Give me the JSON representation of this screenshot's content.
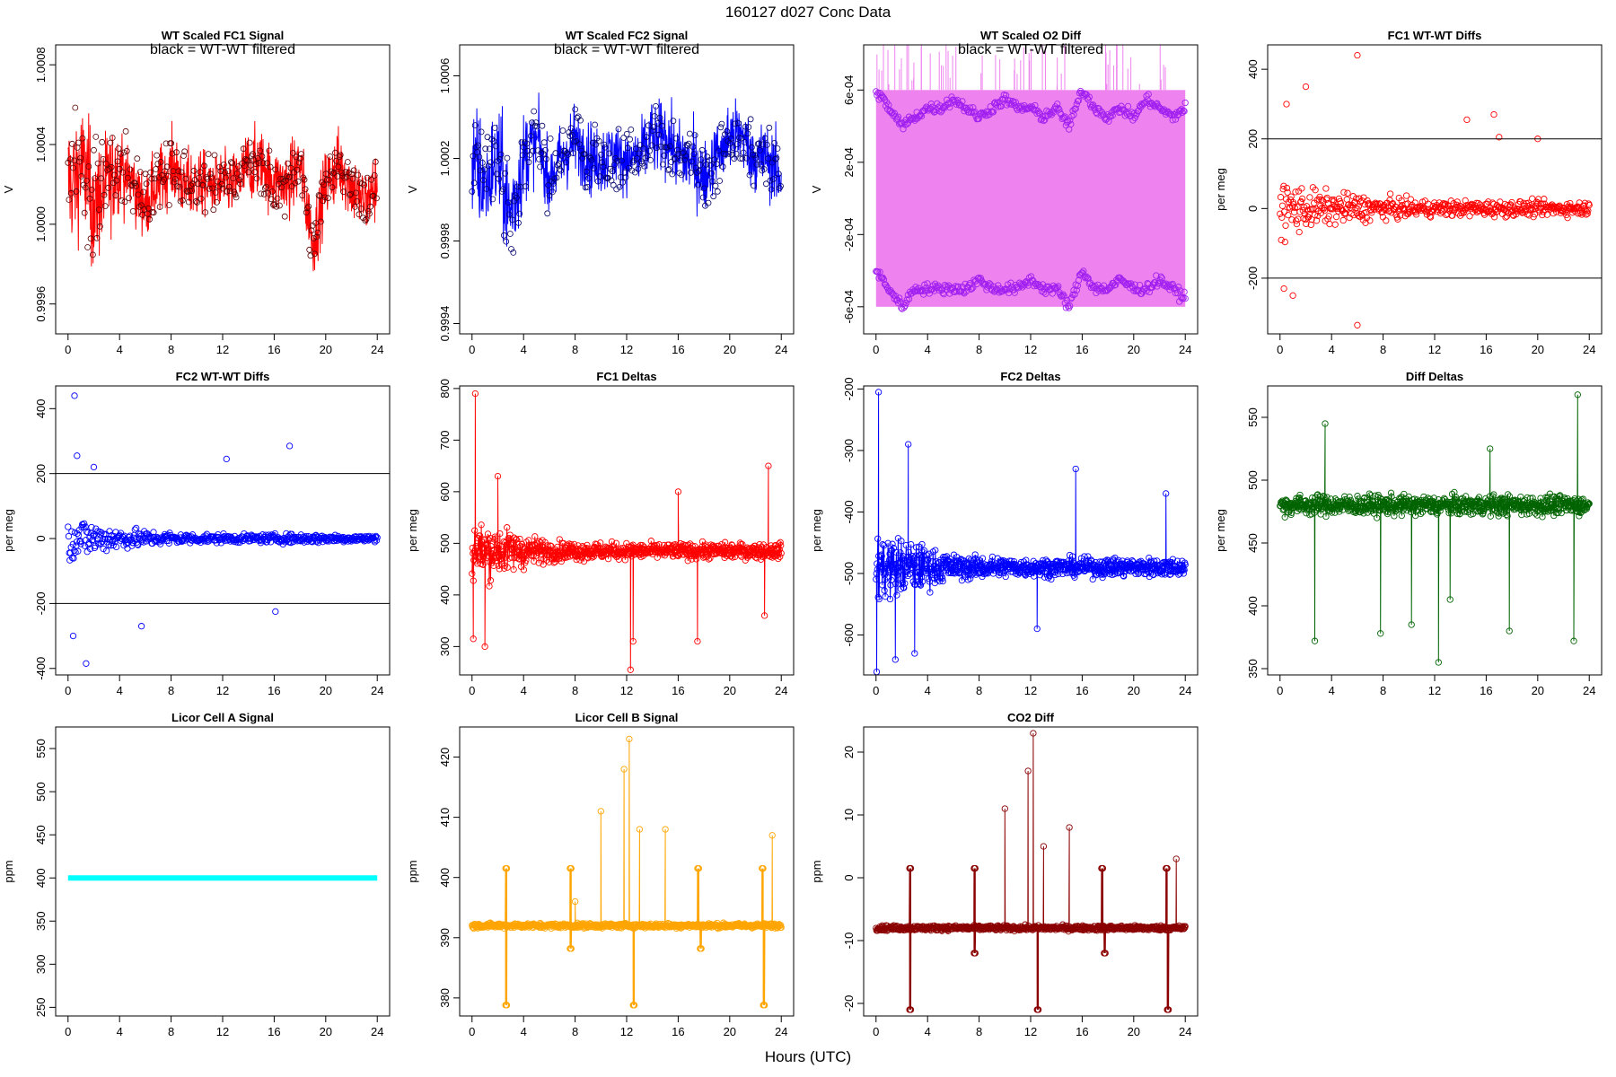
{
  "figure": {
    "title": "160127   d027   Conc Data",
    "xlabel": "Hours (UTC)"
  },
  "chart_data": [
    {
      "type": "line",
      "title": "WT Scaled FC1 Signal",
      "annotation": "black = WT-WT filtered",
      "ylabel": "V",
      "xlim": [
        0,
        24
      ],
      "ylim": [
        0.99945,
        1.0009
      ],
      "xticks": [
        "0",
        "4",
        "8",
        "12",
        "16",
        "20",
        "24"
      ],
      "yticks": [
        0.9996,
        1.0,
        1.0004,
        1.0008
      ],
      "ytick_labels": [
        "0.9996",
        "1.0000",
        "1.0004",
        "1.0008"
      ],
      "ylabel_rotated": true,
      "series": [
        {
          "name": "signal",
          "color": "#ff0000",
          "style": "dense-line",
          "x": [
            0,
            1,
            2,
            3,
            4,
            5,
            6,
            7,
            8,
            9,
            10,
            11,
            12,
            13,
            14,
            15,
            16,
            17,
            18,
            19,
            20,
            21,
            22,
            23,
            24
          ],
          "center": [
            1.0002,
            1.0003,
            1.0001,
            1.0002,
            1.0003,
            1.0002,
            1.0001,
            1.0002,
            1.0003,
            1.0002,
            1.0002,
            1.0002,
            1.0002,
            1.0002,
            1.0003,
            1.0003,
            1.0002,
            1.0002,
            1.0003,
            0.9999,
            1.0002,
            1.0003,
            1.0002,
            1.0001,
            1.0002
          ],
          "spread": [
            0.0004,
            0.00035,
            0.0004,
            0.0003,
            0.00025,
            0.0002,
            0.0002,
            0.0002,
            0.0002,
            0.0002,
            0.0002,
            0.00018,
            0.00018,
            0.00018,
            0.0002,
            0.0002,
            0.0002,
            0.0002,
            0.0002,
            0.0002,
            0.0002,
            0.0002,
            0.0002,
            0.0002,
            0.0002
          ]
        },
        {
          "name": "WT-WT filtered",
          "color": "#5a0000",
          "style": "points"
        }
      ]
    },
    {
      "type": "line",
      "title": "WT Scaled FC2 Signal",
      "annotation": "black = WT-WT filtered",
      "ylabel": "V",
      "xlim": [
        0,
        24
      ],
      "ylim": [
        0.99935,
        1.00075
      ],
      "xticks": [
        "0",
        "4",
        "8",
        "12",
        "16",
        "20",
        "24"
      ],
      "yticks": [
        0.9994,
        0.9998,
        1.0002,
        1.0006
      ],
      "ytick_labels": [
        "0.9994",
        "0.9998",
        "1.0002",
        "1.0006"
      ],
      "ylabel_rotated": true,
      "series": [
        {
          "name": "signal",
          "color": "#0000ff",
          "style": "dense-line",
          "x": [
            0,
            1,
            2,
            3,
            4,
            5,
            6,
            7,
            8,
            9,
            10,
            11,
            12,
            13,
            14,
            15,
            16,
            17,
            18,
            19,
            20,
            21,
            22,
            23,
            24
          ],
          "center": [
            1.0002,
            1.0001,
            1.0002,
            0.9999,
            1.0002,
            1.0003,
            1.0001,
            1.0002,
            1.0003,
            1.0002,
            1.0002,
            1.0002,
            1.0002,
            1.0002,
            1.0003,
            1.0003,
            1.0002,
            1.0002,
            1.0001,
            1.0002,
            1.0003,
            1.0003,
            1.0002,
            1.0002,
            1.0001
          ],
          "spread": [
            0.00035,
            0.0003,
            0.0003,
            0.00035,
            0.00025,
            0.0002,
            0.0002,
            0.0002,
            0.0002,
            0.0002,
            0.0002,
            0.0002,
            0.00018,
            0.00018,
            0.0002,
            0.0002,
            0.0002,
            0.0002,
            0.0002,
            0.0002,
            0.0002,
            0.0002,
            0.0002,
            0.0002,
            0.0002
          ]
        },
        {
          "name": "WT-WT filtered",
          "color": "#00006a",
          "style": "points"
        }
      ]
    },
    {
      "type": "line",
      "title": "WT Scaled O2 Diff",
      "annotation": "black = WT-WT filtered",
      "ylabel": "V",
      "xlim": [
        0,
        24
      ],
      "ylim": [
        -0.00075,
        0.00085
      ],
      "xticks": [
        "0",
        "4",
        "8",
        "12",
        "16",
        "20",
        "24"
      ],
      "yticks": [
        -0.0006,
        -0.0002,
        0.0002,
        0.0006
      ],
      "ytick_labels": [
        "-6e-04",
        "-2e-04",
        "2e-04",
        "6e-04"
      ],
      "ylabel_rotated": true,
      "series": [
        {
          "name": "band",
          "color": "#ee82ee",
          "style": "band",
          "low": -0.0006,
          "high": 0.0006
        },
        {
          "name": "upper",
          "color": "#a020f0",
          "style": "points-curve",
          "x": [
            0,
            1,
            2,
            3,
            4,
            5,
            6,
            7,
            8,
            9,
            10,
            11,
            12,
            13,
            14,
            15,
            16,
            17,
            18,
            19,
            20,
            21,
            22,
            23,
            24
          ],
          "y": [
            0.0006,
            0.0005,
            0.0004,
            0.00045,
            0.0005,
            0.0005,
            0.00055,
            0.0005,
            0.00045,
            0.0005,
            0.00055,
            0.0005,
            0.0005,
            0.00045,
            0.0005,
            0.0004,
            0.0006,
            0.0005,
            0.00045,
            0.0005,
            0.00045,
            0.00055,
            0.0005,
            0.00045,
            0.0005
          ]
        },
        {
          "name": "lower",
          "color": "#a020f0",
          "style": "points-curve",
          "x": [
            0,
            1,
            2,
            3,
            4,
            5,
            6,
            7,
            8,
            9,
            10,
            11,
            12,
            13,
            14,
            15,
            16,
            17,
            18,
            19,
            20,
            21,
            22,
            23,
            24
          ],
          "y": [
            -0.0004,
            -0.0005,
            -0.0006,
            -0.0005,
            -0.0005,
            -0.0005,
            -0.0005,
            -0.0005,
            -0.00045,
            -0.0005,
            -0.0005,
            -0.0005,
            -0.00045,
            -0.0005,
            -0.0005,
            -0.0006,
            -0.0004,
            -0.0005,
            -0.0005,
            -0.00045,
            -0.0005,
            -0.0005,
            -0.00045,
            -0.0005,
            -0.00055
          ]
        }
      ]
    },
    {
      "type": "scatter",
      "title": "FC1 WT-WT Diffs",
      "ylabel": "per meg",
      "xlim": [
        0,
        24
      ],
      "ylim": [
        -360,
        470
      ],
      "xticks": [
        "0",
        "4",
        "8",
        "12",
        "16",
        "20",
        "24"
      ],
      "yticks": [
        -200,
        0,
        200,
        400
      ],
      "ytick_labels": [
        "-200",
        "0",
        "200",
        "400"
      ],
      "hlines": [
        200,
        -200
      ],
      "color": "#ff0000",
      "spread_profile": [
        [
          0,
          180
        ],
        [
          3,
          100
        ],
        [
          6,
          80
        ],
        [
          10,
          50
        ],
        [
          14,
          45
        ],
        [
          18,
          45
        ],
        [
          24,
          40
        ]
      ],
      "outliers": [
        [
          0.5,
          300
        ],
        [
          2,
          350
        ],
        [
          6,
          440
        ],
        [
          6,
          -335
        ],
        [
          1,
          -250
        ],
        [
          0.3,
          -230
        ],
        [
          16.6,
          270
        ],
        [
          20,
          200
        ],
        [
          14.5,
          255
        ],
        [
          17,
          205
        ]
      ]
    },
    {
      "type": "scatter",
      "title": "FC2 WT-WT Diffs",
      "ylabel": "per meg",
      "xlim": [
        0,
        24
      ],
      "ylim": [
        -420,
        470
      ],
      "xticks": [
        "0",
        "4",
        "8",
        "12",
        "16",
        "20",
        "24"
      ],
      "yticks": [
        -400,
        -200,
        0,
        200,
        400
      ],
      "ytick_labels": [
        "-400",
        "-200",
        "0",
        "200",
        "400"
      ],
      "hlines": [
        200,
        -200
      ],
      "color": "#0000ff",
      "spread_profile": [
        [
          0,
          150
        ],
        [
          3,
          80
        ],
        [
          6,
          50
        ],
        [
          10,
          30
        ],
        [
          14,
          25
        ],
        [
          18,
          30
        ],
        [
          24,
          20
        ]
      ],
      "outliers": [
        [
          0.5,
          440
        ],
        [
          1.4,
          -385
        ],
        [
          0.4,
          -300
        ],
        [
          0.7,
          255
        ],
        [
          5.7,
          -270
        ],
        [
          12.3,
          245
        ],
        [
          17.2,
          285
        ],
        [
          16.1,
          -225
        ],
        [
          2,
          220
        ]
      ]
    },
    {
      "type": "line",
      "title": "FC1 Deltas",
      "ylabel": "per meg",
      "xlim": [
        0,
        24
      ],
      "ylim": [
        245,
        805
      ],
      "xticks": [
        "0",
        "4",
        "8",
        "12",
        "16",
        "20",
        "24"
      ],
      "yticks": [
        300,
        400,
        500,
        600,
        700,
        800
      ],
      "ytick_labels": [
        "300",
        "400",
        "500",
        "600",
        "700",
        "800"
      ],
      "color": "#ff0000",
      "base": 485,
      "noise_profile": [
        [
          0,
          60
        ],
        [
          3,
          40
        ],
        [
          6,
          20
        ],
        [
          12,
          15
        ],
        [
          24,
          15
        ]
      ],
      "spikes": [
        [
          0.25,
          790
        ],
        [
          0.1,
          315
        ],
        [
          1,
          300
        ],
        [
          2,
          630
        ],
        [
          12.3,
          255
        ],
        [
          12.5,
          310
        ],
        [
          16,
          600
        ],
        [
          23,
          650
        ],
        [
          17.5,
          310
        ],
        [
          22.7,
          360
        ]
      ]
    },
    {
      "type": "line",
      "title": "FC2 Deltas",
      "ylabel": "per meg",
      "xlim": [
        0,
        24
      ],
      "ylim": [
        -665,
        -195
      ],
      "xticks": [
        "0",
        "4",
        "8",
        "12",
        "16",
        "20",
        "24"
      ],
      "yticks": [
        -600,
        -500,
        -400,
        -300,
        -200
      ],
      "ytick_labels": [
        "-600",
        "-500",
        "-400",
        "-300",
        "-200"
      ],
      "color": "#0000ff",
      "base": -490,
      "noise_profile": [
        [
          0,
          60
        ],
        [
          3,
          40
        ],
        [
          6,
          20
        ],
        [
          12,
          15
        ],
        [
          24,
          15
        ]
      ],
      "spikes": [
        [
          0.2,
          -205
        ],
        [
          0.05,
          -660
        ],
        [
          2.5,
          -290
        ],
        [
          12.5,
          -590
        ],
        [
          15.5,
          -330
        ],
        [
          22.5,
          -370
        ],
        [
          1.5,
          -640
        ],
        [
          3,
          -630
        ]
      ]
    },
    {
      "type": "line",
      "title": "Diff Deltas",
      "ylabel": "per meg",
      "xlim": [
        0,
        24
      ],
      "ylim": [
        345,
        575
      ],
      "xticks": [
        "0",
        "4",
        "8",
        "12",
        "16",
        "20",
        "24"
      ],
      "yticks": [
        350,
        400,
        450,
        500,
        550
      ],
      "ytick_labels": [
        "350",
        "400",
        "450",
        "500",
        "550"
      ],
      "color": "#006400",
      "base": 480,
      "noise_profile": [
        [
          0,
          8
        ],
        [
          24,
          8
        ]
      ],
      "spikes": [
        [
          2.7,
          372
        ],
        [
          3.5,
          545
        ],
        [
          7.8,
          378
        ],
        [
          10.2,
          385
        ],
        [
          12.3,
          355
        ],
        [
          13.2,
          405
        ],
        [
          16.3,
          525
        ],
        [
          17.8,
          380
        ],
        [
          22.8,
          372
        ],
        [
          23.1,
          568
        ]
      ]
    },
    {
      "type": "line",
      "title": "Licor Cell A Signal",
      "ylabel": "ppm",
      "xlim": [
        0,
        24
      ],
      "ylim": [
        240,
        575
      ],
      "xticks": [
        "0",
        "4",
        "8",
        "12",
        "16",
        "20",
        "24"
      ],
      "yticks": [
        250,
        300,
        350,
        400,
        450,
        500,
        550
      ],
      "ytick_labels": [
        "250",
        "300",
        "350",
        "400",
        "450",
        "500",
        "550"
      ],
      "color": "#00ffff",
      "base": 400,
      "flat": true
    },
    {
      "type": "line",
      "title": "Licor Cell B Signal",
      "ylabel": "ppm",
      "xlim": [
        0,
        24
      ],
      "ylim": [
        377,
        425
      ],
      "xticks": [
        "0",
        "4",
        "8",
        "12",
        "16",
        "20",
        "24"
      ],
      "yticks": [
        380,
        390,
        400,
        410,
        420
      ],
      "ytick_labels": [
        "380",
        "390",
        "400",
        "410",
        "420"
      ],
      "color": "#ffa500",
      "base": 392,
      "noise_profile": [
        [
          0,
          0.4
        ],
        [
          24,
          0.4
        ]
      ],
      "steps": [
        [
          2.6,
          401.5
        ],
        [
          2.6,
          378.8
        ],
        [
          7.6,
          401.5
        ],
        [
          7.6,
          388.2
        ],
        [
          12.5,
          378.8
        ],
        [
          17.5,
          401.5
        ],
        [
          17.7,
          388.2
        ],
        [
          22.5,
          401.5
        ],
        [
          22.6,
          378.8
        ]
      ],
      "spikes": [
        [
          10,
          411
        ],
        [
          12.2,
          423
        ],
        [
          11.8,
          418
        ],
        [
          13,
          408
        ],
        [
          15,
          408
        ],
        [
          23.3,
          407
        ],
        [
          8,
          396
        ]
      ]
    },
    {
      "type": "line",
      "title": "CO2 Diff",
      "ylabel": "ppm",
      "xlim": [
        0,
        24
      ],
      "ylim": [
        -22,
        24
      ],
      "xticks": [
        "0",
        "4",
        "8",
        "12",
        "16",
        "20",
        "24"
      ],
      "yticks": [
        -20,
        -10,
        0,
        10,
        20
      ],
      "ytick_labels": [
        "-20",
        "-10",
        "0",
        "10",
        "20"
      ],
      "color": "#8b0000",
      "base": -8,
      "noise_profile": [
        [
          0,
          0.4
        ],
        [
          24,
          0.4
        ]
      ],
      "steps": [
        [
          2.6,
          1.5
        ],
        [
          2.6,
          -21
        ],
        [
          7.6,
          1.5
        ],
        [
          7.6,
          -12
        ],
        [
          12.5,
          -21
        ],
        [
          17.5,
          1.5
        ],
        [
          17.7,
          -12
        ],
        [
          22.5,
          1.5
        ],
        [
          22.6,
          -21
        ]
      ],
      "spikes": [
        [
          10,
          11
        ],
        [
          12.2,
          23
        ],
        [
          11.8,
          17
        ],
        [
          13,
          5
        ],
        [
          15,
          8
        ],
        [
          23.3,
          3
        ]
      ]
    }
  ]
}
